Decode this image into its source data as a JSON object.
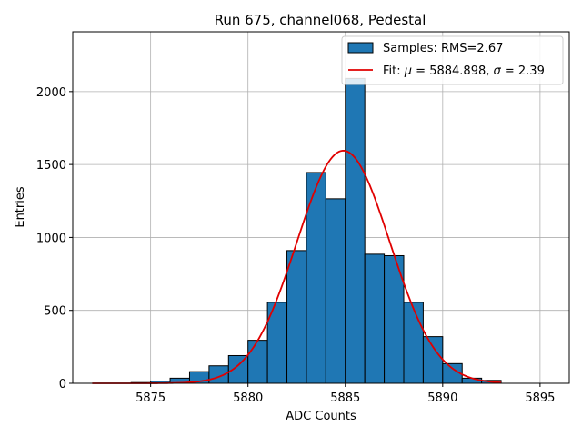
{
  "chart_data": {
    "type": "bar",
    "title": "Run 675, channel068, Pedestal",
    "xlabel": "ADC Counts",
    "ylabel": "Entries",
    "xlim": [
      5871,
      5896.5
    ],
    "ylim": [
      0,
      2410
    ],
    "grid": true,
    "legend_position": "top-right",
    "x_ticks": [
      5875,
      5880,
      5885,
      5890,
      5895
    ],
    "x_tick_labels": [
      "5875",
      "5880",
      "5885",
      "5890",
      "5895"
    ],
    "y_ticks": [
      0,
      500,
      1000,
      1500,
      2000
    ],
    "y_tick_labels": [
      "0",
      "500",
      "1000",
      "1500",
      "2000"
    ],
    "series": [
      {
        "name": "Samples: RMS=2.67",
        "kind": "histogram",
        "color": "#1f77b4",
        "edge_color": "#000000",
        "bin_edges": [
          5874,
          5875,
          5876,
          5877,
          5878,
          5879,
          5880,
          5881,
          5882,
          5883,
          5884,
          5885,
          5886,
          5887,
          5888,
          5889,
          5890,
          5891,
          5892,
          5893
        ],
        "values": [
          5,
          15,
          35,
          80,
          120,
          190,
          295,
          555,
          910,
          1445,
          1265,
          2090,
          885,
          875,
          555,
          320,
          135,
          35,
          20
        ]
      },
      {
        "name": "Fit: μ = 5884.898, σ = 2.39",
        "kind": "gaussian-fit",
        "color": "#e00000",
        "mu": 5884.898,
        "sigma": 2.39,
        "amplitude": 1595,
        "x_range": [
          5872,
          5893
        ]
      }
    ],
    "legend": {
      "entries": [
        {
          "label": "Samples: RMS=2.67",
          "symbol": "patch"
        },
        {
          "label": "Fit: ",
          "mu_sym": "μ",
          "mu_text": " = 5884.898, ",
          "sigma_sym": "σ",
          "sigma_text": " = 2.39",
          "symbol": "line"
        }
      ]
    }
  }
}
